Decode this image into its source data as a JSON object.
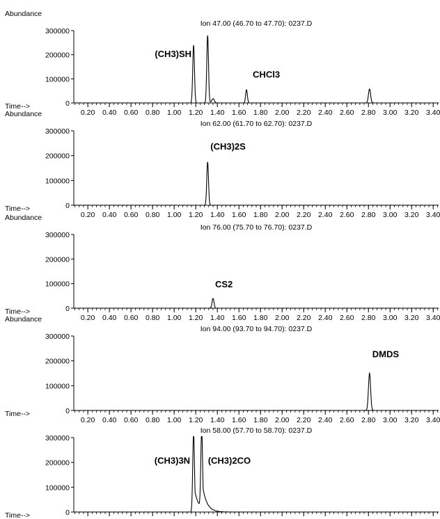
{
  "chart_data": [
    {
      "type": "line",
      "title": "Ion  47.00 (46.70 to 47.70): 0237.D",
      "ylabel": "Abundance",
      "xlabel": "Time-->",
      "yticks": [
        0,
        100000,
        200000,
        300000
      ],
      "ytick_labels": [
        "0",
        "100000",
        "200000",
        "300000"
      ],
      "ylim": [
        0,
        300000
      ],
      "xlim": [
        0.07,
        3.45
      ],
      "xticks": [
        0.2,
        0.4,
        0.6,
        0.8,
        1.0,
        1.2,
        1.4,
        1.6,
        1.8,
        2.0,
        2.2,
        2.4,
        2.6,
        2.8,
        3.0,
        3.2,
        3.4
      ],
      "xtick_labels": [
        "0.20",
        "0.40",
        "0.60",
        "0.80",
        "1.00",
        "1.20",
        "1.40",
        "1.60",
        "1.80",
        "2.00",
        "2.20",
        "2.40",
        "2.60",
        "2.80",
        "3.00",
        "3.20",
        "3.40"
      ],
      "peaks": [
        {
          "x": 1.18,
          "y": 240000,
          "w": 0.008
        },
        {
          "x": 1.31,
          "y": 280000,
          "w": 0.008
        },
        {
          "x": 1.36,
          "y": 18000,
          "w": 0.012
        },
        {
          "x": 1.67,
          "y": 55000,
          "w": 0.008
        },
        {
          "x": 2.81,
          "y": 58000,
          "w": 0.01
        }
      ],
      "annotations": [
        {
          "text": "(CH3)SH",
          "x": 1.18,
          "y": 190000,
          "anchor": "end",
          "dx": -3
        },
        {
          "text": "CHCl3",
          "x": 1.67,
          "y": 105000,
          "anchor": "start",
          "dx": 9
        }
      ],
      "show_xticklabels": true
    },
    {
      "type": "line",
      "title": "Ion  62.00 (61.70 to 62.70): 0237.D",
      "ylabel": "Abundance",
      "xlabel": "Time-->",
      "yticks": [
        0,
        100000,
        200000,
        300000
      ],
      "ytick_labels": [
        "0",
        "100000",
        "200000",
        "300000"
      ],
      "ylim": [
        0,
        300000
      ],
      "xlim": [
        0.07,
        3.45
      ],
      "xticks": [
        0.2,
        0.4,
        0.6,
        0.8,
        1.0,
        1.2,
        1.4,
        1.6,
        1.8,
        2.0,
        2.2,
        2.4,
        2.6,
        2.8,
        3.0,
        3.2,
        3.4
      ],
      "xtick_labels": [
        "0.20",
        "0.40",
        "0.60",
        "0.80",
        "1.00",
        "1.20",
        "1.40",
        "1.60",
        "1.80",
        "2.00",
        "2.20",
        "2.40",
        "2.60",
        "2.80",
        "3.00",
        "3.20",
        "3.40"
      ],
      "peaks": [
        {
          "x": 1.31,
          "y": 175000,
          "w": 0.008
        }
      ],
      "annotations": [
        {
          "text": "(CH3)2S",
          "x": 1.31,
          "y": 225000,
          "anchor": "start",
          "dx": 4
        }
      ],
      "show_xticklabels": true
    },
    {
      "type": "line",
      "title": "Ion  76.00 (75.70 to 76.70): 0237.D",
      "ylabel": "Abundance",
      "xlabel": "Time-->",
      "yticks": [
        0,
        100000,
        200000,
        300000
      ],
      "ytick_labels": [
        "0",
        "100000",
        "200000",
        "300000"
      ],
      "ylim": [
        0,
        300000
      ],
      "xlim": [
        0.07,
        3.45
      ],
      "xticks": [
        0.2,
        0.4,
        0.6,
        0.8,
        1.0,
        1.2,
        1.4,
        1.6,
        1.8,
        2.0,
        2.2,
        2.4,
        2.6,
        2.8,
        3.0,
        3.2,
        3.4
      ],
      "xtick_labels": [
        "0.20",
        "0.40",
        "0.60",
        "0.80",
        "1.00",
        "1.20",
        "1.40",
        "1.60",
        "1.80",
        "2.00",
        "2.20",
        "2.40",
        "2.60",
        "2.80",
        "3.00",
        "3.20",
        "3.40"
      ],
      "peaks": [
        {
          "x": 1.36,
          "y": 40000,
          "w": 0.009
        }
      ],
      "annotations": [
        {
          "text": "CS2",
          "x": 1.36,
          "y": 85000,
          "anchor": "start",
          "dx": 3
        }
      ],
      "show_xticklabels": true
    },
    {
      "type": "line",
      "title": "Ion  94.00 (93.70 to 94.70): 0237.D",
      "ylabel": "Abundance",
      "xlabel": "Time-->",
      "yticks": [
        0,
        100000,
        200000,
        300000
      ],
      "ytick_labels": [
        "0",
        "100000",
        "200000",
        "300000"
      ],
      "ylim": [
        0,
        300000
      ],
      "xlim": [
        0.07,
        3.45
      ],
      "xticks": [
        0.2,
        0.4,
        0.6,
        0.8,
        1.0,
        1.2,
        1.4,
        1.6,
        1.8,
        2.0,
        2.2,
        2.4,
        2.6,
        2.8,
        3.0,
        3.2,
        3.4
      ],
      "xtick_labels": [
        "0.20",
        "0.40",
        "0.60",
        "0.80",
        "1.00",
        "1.20",
        "1.40",
        "1.60",
        "1.80",
        "2.00",
        "2.20",
        "2.40",
        "2.60",
        "2.80",
        "3.00",
        "3.20",
        "3.40"
      ],
      "peaks": [
        {
          "x": 2.81,
          "y": 150000,
          "w": 0.01
        }
      ],
      "annotations": [
        {
          "text": "DMDS",
          "x": 2.81,
          "y": 215000,
          "anchor": "start",
          "dx": 4
        }
      ],
      "show_xticklabels": true
    },
    {
      "type": "line",
      "title": "Ion  58.00 (57.70 to 58.70): 0237.D",
      "ylabel": "",
      "xlabel": "Time-->",
      "yticks": [
        0,
        100000,
        200000,
        300000
      ],
      "ytick_labels": [
        "0",
        "100000",
        "200000",
        "300000"
      ],
      "ylim": [
        0,
        300000
      ],
      "xlim": [
        0.07,
        3.45
      ],
      "xticks": [
        0.2,
        0.4,
        0.6,
        0.8,
        1.0,
        1.2,
        1.4,
        1.6,
        1.8,
        2.0,
        2.2,
        2.4,
        2.6,
        2.8,
        3.0,
        3.2,
        3.4
      ],
      "xtick_labels": [],
      "peaks": [
        {
          "x": 1.18,
          "y": 320000,
          "w": 0.008,
          "tail": 0.04
        },
        {
          "x": 1.255,
          "y": 320000,
          "w": 0.008,
          "tail": 0.04
        }
      ],
      "annotations": [
        {
          "text": "(CH3)3N",
          "x": 1.18,
          "y": 195000,
          "anchor": "end",
          "dx": -5
        },
        {
          "text": "(CH3)2CO",
          "x": 1.255,
          "y": 195000,
          "anchor": "start",
          "dx": 9
        }
      ],
      "show_xticklabels": false
    }
  ]
}
